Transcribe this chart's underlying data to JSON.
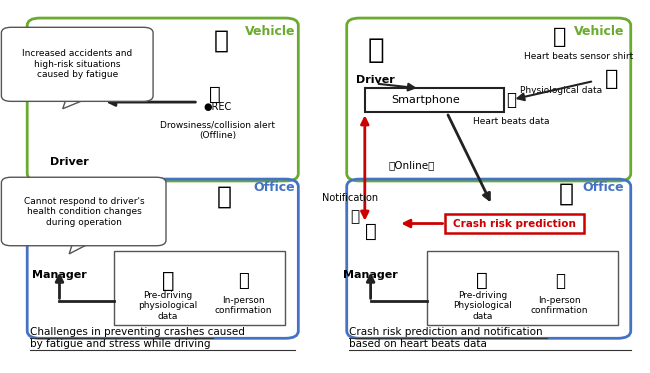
{
  "fig_width": 6.5,
  "fig_height": 3.73,
  "dpi": 100,
  "bg_color": "#ffffff",
  "colors": {
    "green": "#6aaa2e",
    "blue": "#4472c4",
    "red": "#cc0000",
    "black": "#222222",
    "gray": "#555555"
  },
  "left_caption_line1": "Challenges in preventing crashes caused ",
  "left_caption_line2": "by fatigue and stress while driving",
  "right_caption_line1": "Crash risk prediction and notification ",
  "right_caption_line2": "based on heart beats data",
  "callout_vehicle_text": "Increased accidents and\nhigh-risk situations\ncaused by fatigue",
  "callout_office_text": "Cannot respond to driver's\nhealth condition changes\nduring operation",
  "dvr_label": "●REC",
  "dvr_sublabel": "Drowsiness/collision alert\n(Offline)",
  "online_label": "（Online）",
  "crash_label": "Crash risk prediction",
  "heartbeats_label": "Heart beats data",
  "physiological_label": "Physiological data",
  "sensor_label": "Heart beats sensor shirt",
  "notification_label": "Notification"
}
